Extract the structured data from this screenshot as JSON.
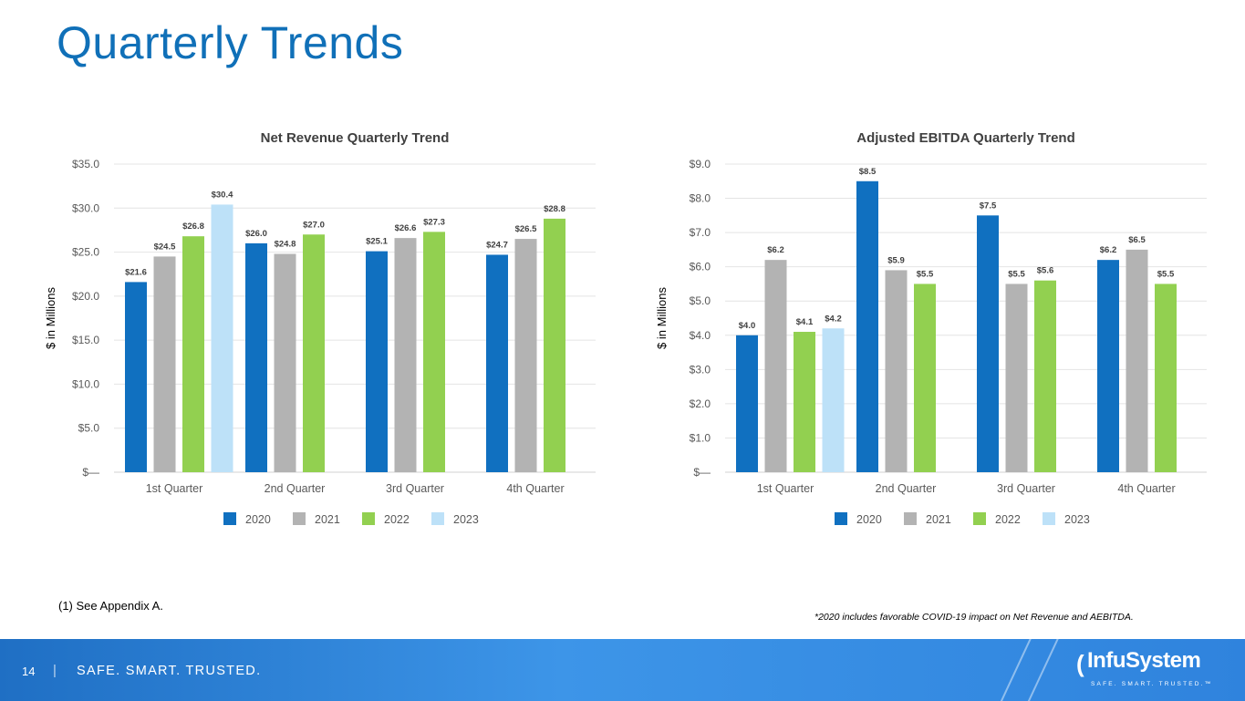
{
  "page": {
    "title": "Quarterly Trends",
    "footnote_left": "(1) See Appendix A.",
    "footnote_right": "*2020 includes favorable COVID-19 impact on Net Revenue and AEBITDA.",
    "footer": {
      "page_number": "14",
      "separator": "|",
      "tagline": "SAFE. SMART. TRUSTED."
    },
    "logo": {
      "name": "InfuSystem",
      "tagline": "SAFE. SMART. TRUSTED.™"
    }
  },
  "colors": {
    "2020": "#1070C0",
    "2021": "#B3B3B3",
    "2022": "#92D050",
    "2023": "#BDE1F8"
  },
  "chart_data": [
    {
      "type": "bar",
      "title": "Net Revenue Quarterly Trend",
      "xlabel": "",
      "ylabel": "$ in Millions",
      "ylim": [
        0,
        35
      ],
      "ytick_step": 5,
      "ytick_labels": [
        "$—",
        "$5.0",
        "$10.0",
        "$15.0",
        "$20.0",
        "$25.0",
        "$30.0",
        "$35.0"
      ],
      "categories": [
        "1st Quarter",
        "2nd Quarter",
        "3rd Quarter",
        "4th Quarter"
      ],
      "legend": "bottom",
      "series": [
        {
          "name": "2020",
          "values": [
            21.6,
            26.0,
            25.1,
            24.7
          ],
          "labels": [
            "$21.6",
            "$26.0",
            "$25.1",
            "$24.7"
          ]
        },
        {
          "name": "2021",
          "values": [
            24.5,
            24.8,
            26.6,
            26.5
          ],
          "labels": [
            "$24.5",
            "$24.8",
            "$26.6",
            "$26.5"
          ]
        },
        {
          "name": "2022",
          "values": [
            26.8,
            27.0,
            27.3,
            28.8
          ],
          "labels": [
            "$26.8",
            "$27.0",
            "$27.3",
            "$28.8"
          ]
        },
        {
          "name": "2023",
          "values": [
            30.4,
            null,
            null,
            null
          ],
          "labels": [
            "$30.4",
            null,
            null,
            null
          ]
        }
      ]
    },
    {
      "type": "bar",
      "title": "Adjusted EBITDA Quarterly Trend",
      "xlabel": "",
      "ylabel": "$ in Millions",
      "ylim": [
        0,
        9
      ],
      "ytick_step": 1,
      "ytick_labels": [
        "$—",
        "$1.0",
        "$2.0",
        "$3.0",
        "$4.0",
        "$5.0",
        "$6.0",
        "$7.0",
        "$8.0",
        "$9.0"
      ],
      "categories": [
        "1st Quarter",
        "2nd Quarter",
        "3rd Quarter",
        "4th Quarter"
      ],
      "legend": "bottom",
      "series": [
        {
          "name": "2020",
          "values": [
            4.0,
            8.5,
            7.5,
            6.2
          ],
          "labels": [
            "$4.0",
            "$8.5",
            "$7.5",
            "$6.2"
          ]
        },
        {
          "name": "2021",
          "values": [
            6.2,
            5.9,
            5.5,
            6.5
          ],
          "labels": [
            "$6.2",
            "$5.9",
            "$5.5",
            "$6.5"
          ]
        },
        {
          "name": "2022",
          "values": [
            4.1,
            5.5,
            5.6,
            5.5
          ],
          "labels": [
            "$4.1",
            "$5.5",
            "$5.6",
            "$5.5"
          ]
        },
        {
          "name": "2023",
          "values": [
            4.2,
            null,
            null,
            null
          ],
          "labels": [
            "$4.2",
            null,
            null,
            null
          ]
        }
      ]
    }
  ]
}
